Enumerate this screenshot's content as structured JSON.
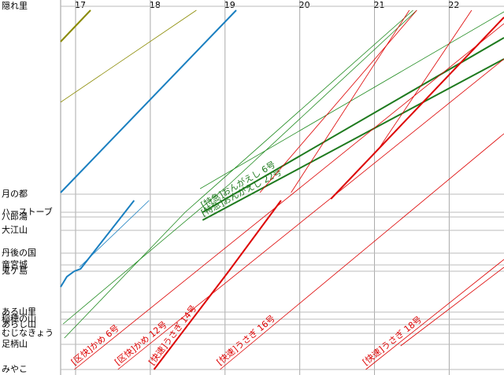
{
  "chart_data": {
    "type": "line",
    "xlim": [
      1008,
      1364
    ],
    "xticks": [
      {
        "value": 1020,
        "label": "17"
      },
      {
        "value": 1080,
        "label": "18"
      },
      {
        "value": 1140,
        "label": "19"
      },
      {
        "value": 1200,
        "label": "20"
      },
      {
        "value": 1260,
        "label": "21"
      },
      {
        "value": 1320,
        "label": "22"
      }
    ],
    "ylim": [
      -7,
      470
    ],
    "stations": [
      {
        "name": "隠れ里",
        "km": 462
      },
      {
        "name": "月の都",
        "km": 223
      },
      {
        "name": "ハーストーブ",
        "km": 200
      },
      {
        "name": "八郎湯",
        "km": 194
      },
      {
        "name": "大江山",
        "km": 177
      },
      {
        "name": "丹後の国",
        "km": 148
      },
      {
        "name": "竜宮城",
        "km": 133
      },
      {
        "name": "鬼ケ島",
        "km": 125
      },
      {
        "name": "ある山里",
        "km": 73
      },
      {
        "name": "稲穂の山",
        "km": 64
      },
      {
        "name": "あらし山",
        "km": 57
      },
      {
        "name": "むじなきょう",
        "km": 46
      },
      {
        "name": "足柄山",
        "km": 32
      },
      {
        "name": "みやこ",
        "km": 0
      }
    ],
    "series": [
      {
        "color": "#8a8a00",
        "width": 2,
        "x": [
          1008,
          1032
        ],
        "values": [
          417,
          457
        ]
      },
      {
        "color": "#8a8a00",
        "width": 0.8,
        "x": [
          1008,
          1117
        ],
        "values": [
          340,
          457
        ]
      },
      {
        "color": "#1a7fc0",
        "width": 2,
        "x": [
          1008,
          1149
        ],
        "values": [
          225,
          457
        ]
      },
      {
        "color": "#1a7fc0",
        "width": 2,
        "x": [
          1008,
          1013,
          1019,
          1024,
          1067
        ],
        "values": [
          105,
          118,
          125,
          128,
          215
        ]
      },
      {
        "color": "#1a7fc0",
        "width": 0.8,
        "x": [
          1023,
          1079
        ],
        "values": [
          130,
          215
        ]
      },
      {
        "color": "#1e8a1e",
        "width": 0.8,
        "x": [
          1010,
          1143,
          1294
        ],
        "values": [
          58,
          235,
          457
        ]
      },
      {
        "color": "#1e8a1e",
        "width": 0.8,
        "x": [
          1011,
          1108,
          1291
        ],
        "values": [
          40,
          200,
          457
        ]
      },
      {
        "color": "#1e8a1e",
        "width": 0.8,
        "x": [
          1120,
          1364
        ],
        "values": [
          230,
          455
        ]
      },
      {
        "name": "[特急]おんがえし 6号",
        "color": "#1e7a1e",
        "width": 2,
        "x": [
          1122,
          1364
        ],
        "values": [
          200,
          422
        ]
      },
      {
        "name": "[特急]おんがえし 22号",
        "color": "#1e7a1e",
        "width": 2,
        "x": [
          1122,
          1364
        ],
        "values": [
          190,
          395
        ]
      },
      {
        "color": "#dd0000",
        "width": 2,
        "x": [
          1225,
          1364
        ],
        "values": [
          217,
          448
        ]
      },
      {
        "name": "[区快]かめ 6号",
        "color": "#dd0000",
        "width": 0.8,
        "x": [
          1019,
          1364
        ],
        "values": [
          0,
          440
        ]
      },
      {
        "name": "[区快]かめ 12号",
        "color": "#dd0000",
        "width": 0.8,
        "x": [
          1054,
          1364
        ],
        "values": [
          0,
          395
        ]
      },
      {
        "name": "[快速]うさぎ 14号",
        "color": "#dd0000",
        "width": 2,
        "x": [
          1083,
          1143,
          1185
        ],
        "values": [
          0,
          125,
          215
        ]
      },
      {
        "name": "[快速]うさぎ 16号",
        "color": "#dd0000",
        "width": 0.8,
        "x": [
          1136,
          1364
        ],
        "values": [
          0,
          300
        ]
      },
      {
        "name": "[快速]うさぎ 18号",
        "color": "#dd0000",
        "width": 0.8,
        "x": [
          1253,
          1364
        ],
        "values": [
          0,
          140
        ]
      },
      {
        "color": "#dd0000",
        "width": 0.8,
        "x": [
          1168,
          1294
        ],
        "values": [
          225,
          457
        ]
      },
      {
        "color": "#dd0000",
        "width": 0.8,
        "x": [
          1193,
          1288
        ],
        "values": [
          225,
          457
        ]
      },
      {
        "color": "#dd0000",
        "width": 0.8,
        "x": [
          1263,
          1338
        ],
        "values": [
          280,
          457
        ]
      },
      {
        "color": "#dd0000",
        "width": 0.8,
        "x": [
          1281,
          1364
        ],
        "values": [
          30,
          130
        ]
      }
    ]
  }
}
